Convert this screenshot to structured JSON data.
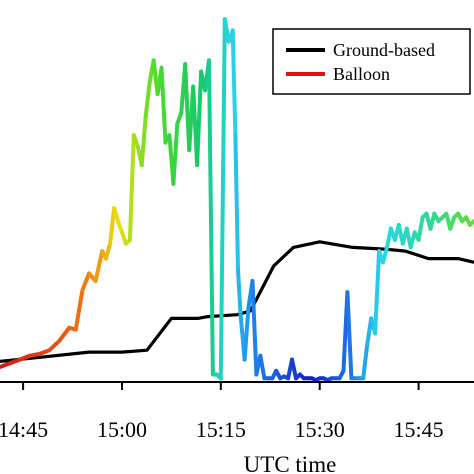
{
  "chart_data": {
    "type": "line",
    "xlabel": "UTC time",
    "ylabel": "",
    "x_tick_labels": [
      "14:45",
      "15:00",
      "15:15",
      "15:30",
      "15:45"
    ],
    "x_ticks_min": [
      885,
      900,
      915,
      930,
      945
    ],
    "xlim_min": [
      881.5,
      953.4
    ],
    "ylim": [
      0,
      100
    ],
    "grid": false,
    "legend_position": "top-right",
    "series": [
      {
        "name": "Ground-based",
        "color": "#000000",
        "x_min": [
          881.5,
          887,
          895,
          900,
          903.8,
          907.5,
          911.5,
          913,
          917.5,
          919.5,
          923,
          926,
          930,
          935,
          940,
          943,
          946.5,
          951,
          953.4
        ],
        "y": [
          5.5,
          6.5,
          8,
          8,
          8.5,
          17,
          17,
          17.5,
          18,
          19,
          31,
          36,
          37.5,
          36,
          35.5,
          35,
          33,
          33,
          32
        ]
      },
      {
        "name": "Balloon",
        "color": "#dd1111",
        "colormap": "time-coloured: red → yellow → green → cyan → blue → cyan → green",
        "x_min": [
          881.5,
          883,
          884.5,
          886,
          887.5,
          889,
          890.5,
          892,
          893,
          894,
          895,
          896,
          897,
          897.6,
          898.2,
          898.8,
          899.4,
          900,
          900.6,
          901.2,
          901.8,
          902.4,
          903,
          903.6,
          904.2,
          904.8,
          905.4,
          906,
          906.6,
          907.2,
          907.8,
          908.4,
          909,
          909.6,
          910.2,
          910.8,
          911.4,
          912,
          912.6,
          913.2,
          913.8,
          914.4,
          915,
          915.6,
          916.2,
          916.8,
          917.2,
          917.6,
          918,
          918.6,
          919.2,
          919.8,
          920.4,
          921,
          921.6,
          922.2,
          922.8,
          923.4,
          924,
          924.6,
          925.2,
          925.8,
          926.4,
          927,
          927.6,
          928.2,
          928.8,
          929.4,
          930,
          930.6,
          931.2,
          931.8,
          932.4,
          933,
          933.6,
          934.2,
          934.8,
          935.4,
          936,
          936.6,
          937.2,
          937.8,
          938.4,
          939,
          939.6,
          940.2,
          940.8,
          941.4,
          942,
          942.6,
          943.2,
          943.8,
          944.4,
          945,
          945.6,
          946.2,
          946.8,
          947.4,
          948,
          948.6,
          949.2,
          949.8,
          950.4,
          951,
          951.6,
          952.2,
          952.8,
          953.4
        ],
        "y": [
          4,
          5,
          6,
          7,
          7.5,
          8.5,
          11,
          14.5,
          14,
          24.5,
          29,
          27,
          35,
          33,
          37,
          46.5,
          43,
          40,
          37,
          38,
          66,
          63,
          58,
          71,
          80,
          86,
          77,
          84,
          64,
          66,
          53,
          69,
          72,
          85,
          62,
          79,
          58,
          83,
          78,
          86,
          2,
          2,
          1,
          97,
          91,
          94,
          66,
          30,
          18,
          6,
          20,
          27,
          2,
          7,
          1,
          1,
          1,
          3,
          1,
          1.5,
          1,
          6,
          1,
          2,
          1,
          1,
          1,
          0.5,
          1,
          1,
          0.5,
          1,
          1,
          1,
          3,
          24,
          1,
          1,
          1,
          1,
          10,
          17,
          13,
          35,
          32,
          36,
          41,
          38,
          42,
          37,
          41,
          36,
          40,
          38,
          44,
          45,
          41,
          45,
          43,
          44,
          45,
          41,
          44,
          45,
          43,
          44,
          42,
          43
        ]
      }
    ]
  }
}
